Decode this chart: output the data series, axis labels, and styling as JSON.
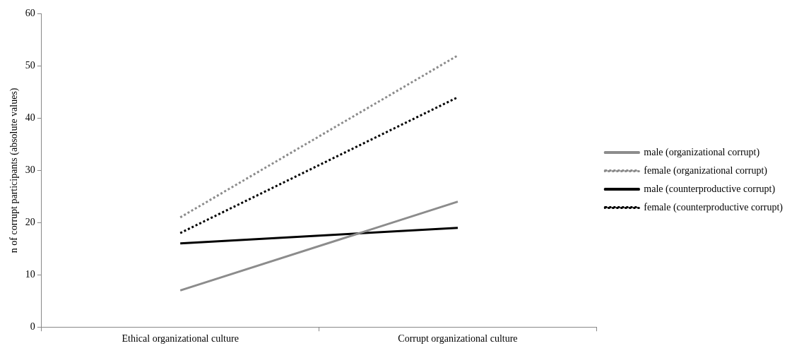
{
  "chart_data": {
    "type": "line",
    "ylabel": "n of corrupt participants (absolute values)",
    "categories": [
      "Ethical organizational culture",
      "Corrupt organizational culture"
    ],
    "series": [
      {
        "name": "male (organizational corrupt)",
        "color": "#8c8c8c",
        "values": [
          7,
          24
        ],
        "line_style": "solid"
      },
      {
        "name": "female (organizational corrupt)",
        "color": "#8c8c8c",
        "values": [
          21,
          52
        ],
        "line_style": "dotted"
      },
      {
        "name": "male (counterproductive corrupt)",
        "color": "#000000",
        "values": [
          16,
          19
        ],
        "line_style": "solid"
      },
      {
        "name": "female (counterproductive corrupt)",
        "color": "#000000",
        "values": [
          18,
          44
        ],
        "line_style": "dotted"
      }
    ],
    "ylim": [
      0,
      60
    ],
    "yticks": [
      0,
      10,
      20,
      30,
      40,
      50,
      60
    ],
    "grid": false,
    "legend": "right",
    "marker": "none"
  }
}
